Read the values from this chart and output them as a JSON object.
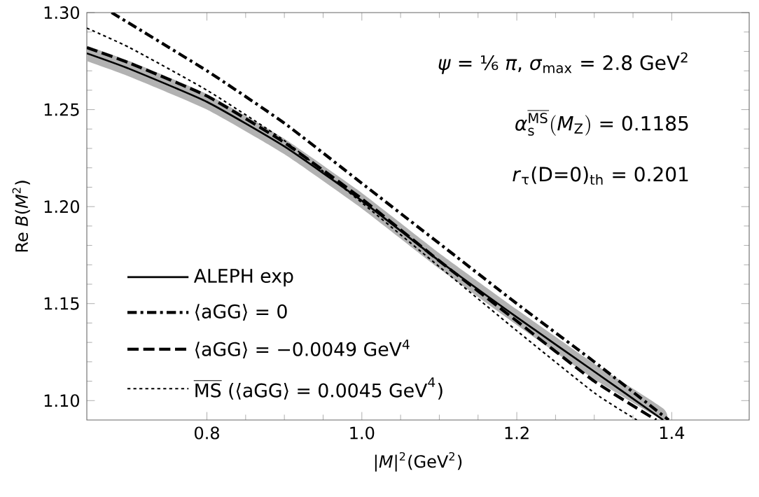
{
  "chart_data": {
    "type": "line",
    "xlabel": "|*M*|$^{2}$(GeV$^{2}$)",
    "ylabel": "Re *B*(*M*$^{2}$)",
    "xlim": [
      0.645,
      1.5
    ],
    "ylim": [
      1.09,
      1.3
    ],
    "xticks": [
      {
        "value": 0.8,
        "label": "0.8"
      },
      {
        "value": 1.0,
        "label": "1.0"
      },
      {
        "value": 1.2,
        "label": "1.2"
      },
      {
        "value": 1.4,
        "label": "1.4"
      }
    ],
    "yticks": [
      {
        "value": 1.1,
        "label": "1.10"
      },
      {
        "value": 1.15,
        "label": "1.15"
      },
      {
        "value": 1.2,
        "label": "1.20"
      },
      {
        "value": 1.25,
        "label": "1.25"
      },
      {
        "value": 1.3,
        "label": "1.30"
      }
    ],
    "legend": "bottom left",
    "annotations": [
      "*ψ* = ⅙ *π*,  *σ*$_{max}$ = 2.8 GeV$^{2}$",
      "\\textit{α}_{\\mathrm{s}}^{\\overline{\\mathrm{MS}}}(\\textit{M}_{\\mathrm{Z}})\\ \\text{= 0.1185}",
      "*r*$_{τ}$(D=0)$_{th}$ = 0.201"
    ],
    "series": [
      {
        "name": "ALEPH exp",
        "color": "#000000",
        "line_style": "solid",
        "x": [
          0.645,
          0.7,
          0.8,
          0.9,
          1.0,
          1.1,
          1.2,
          1.3,
          1.389
        ],
        "values": [
          1.279,
          1.271,
          1.254,
          1.231,
          1.203,
          1.172,
          1.143,
          1.115,
          1.09
        ],
        "lower": [
          1.275,
          1.267,
          1.25,
          1.227,
          1.199,
          1.168,
          1.139,
          1.111,
          1.09
        ],
        "upper": [
          1.283,
          1.275,
          1.258,
          1.235,
          1.207,
          1.176,
          1.147,
          1.119,
          1.096
        ]
      },
      {
        "name": "⟨aGG⟩ = 0",
        "color": "#000000",
        "line_style": "dashdot",
        "x": [
          0.677,
          0.8,
          0.9,
          1.0,
          1.1,
          1.2,
          1.3,
          1.396
        ],
        "values": [
          1.3,
          1.27,
          1.243,
          1.212,
          1.181,
          1.15,
          1.12,
          1.09
        ]
      },
      {
        "name": "⟨aGG⟩ = −0.0049 GeV$^{4}$",
        "color": "#000000",
        "line_style": "dashed",
        "x": [
          0.645,
          0.7,
          0.8,
          0.9,
          1.0,
          1.1,
          1.2,
          1.3,
          1.38
        ],
        "values": [
          1.282,
          1.274,
          1.257,
          1.233,
          1.204,
          1.172,
          1.141,
          1.11,
          1.09
        ]
      },
      {
        "name": "\\overline{\\mathrm{MS}}\\ \\text{(⟨aGG⟩ = 0.0045 GeV}^{\\text{4}}\\text{)}",
        "color": "#000000",
        "line_style": "dotted",
        "x": [
          0.645,
          0.7,
          0.8,
          0.9,
          1.0,
          1.1,
          1.2,
          1.3,
          1.355
        ],
        "values": [
          1.292,
          1.282,
          1.26,
          1.234,
          1.202,
          1.169,
          1.136,
          1.104,
          1.09
        ]
      }
    ]
  }
}
